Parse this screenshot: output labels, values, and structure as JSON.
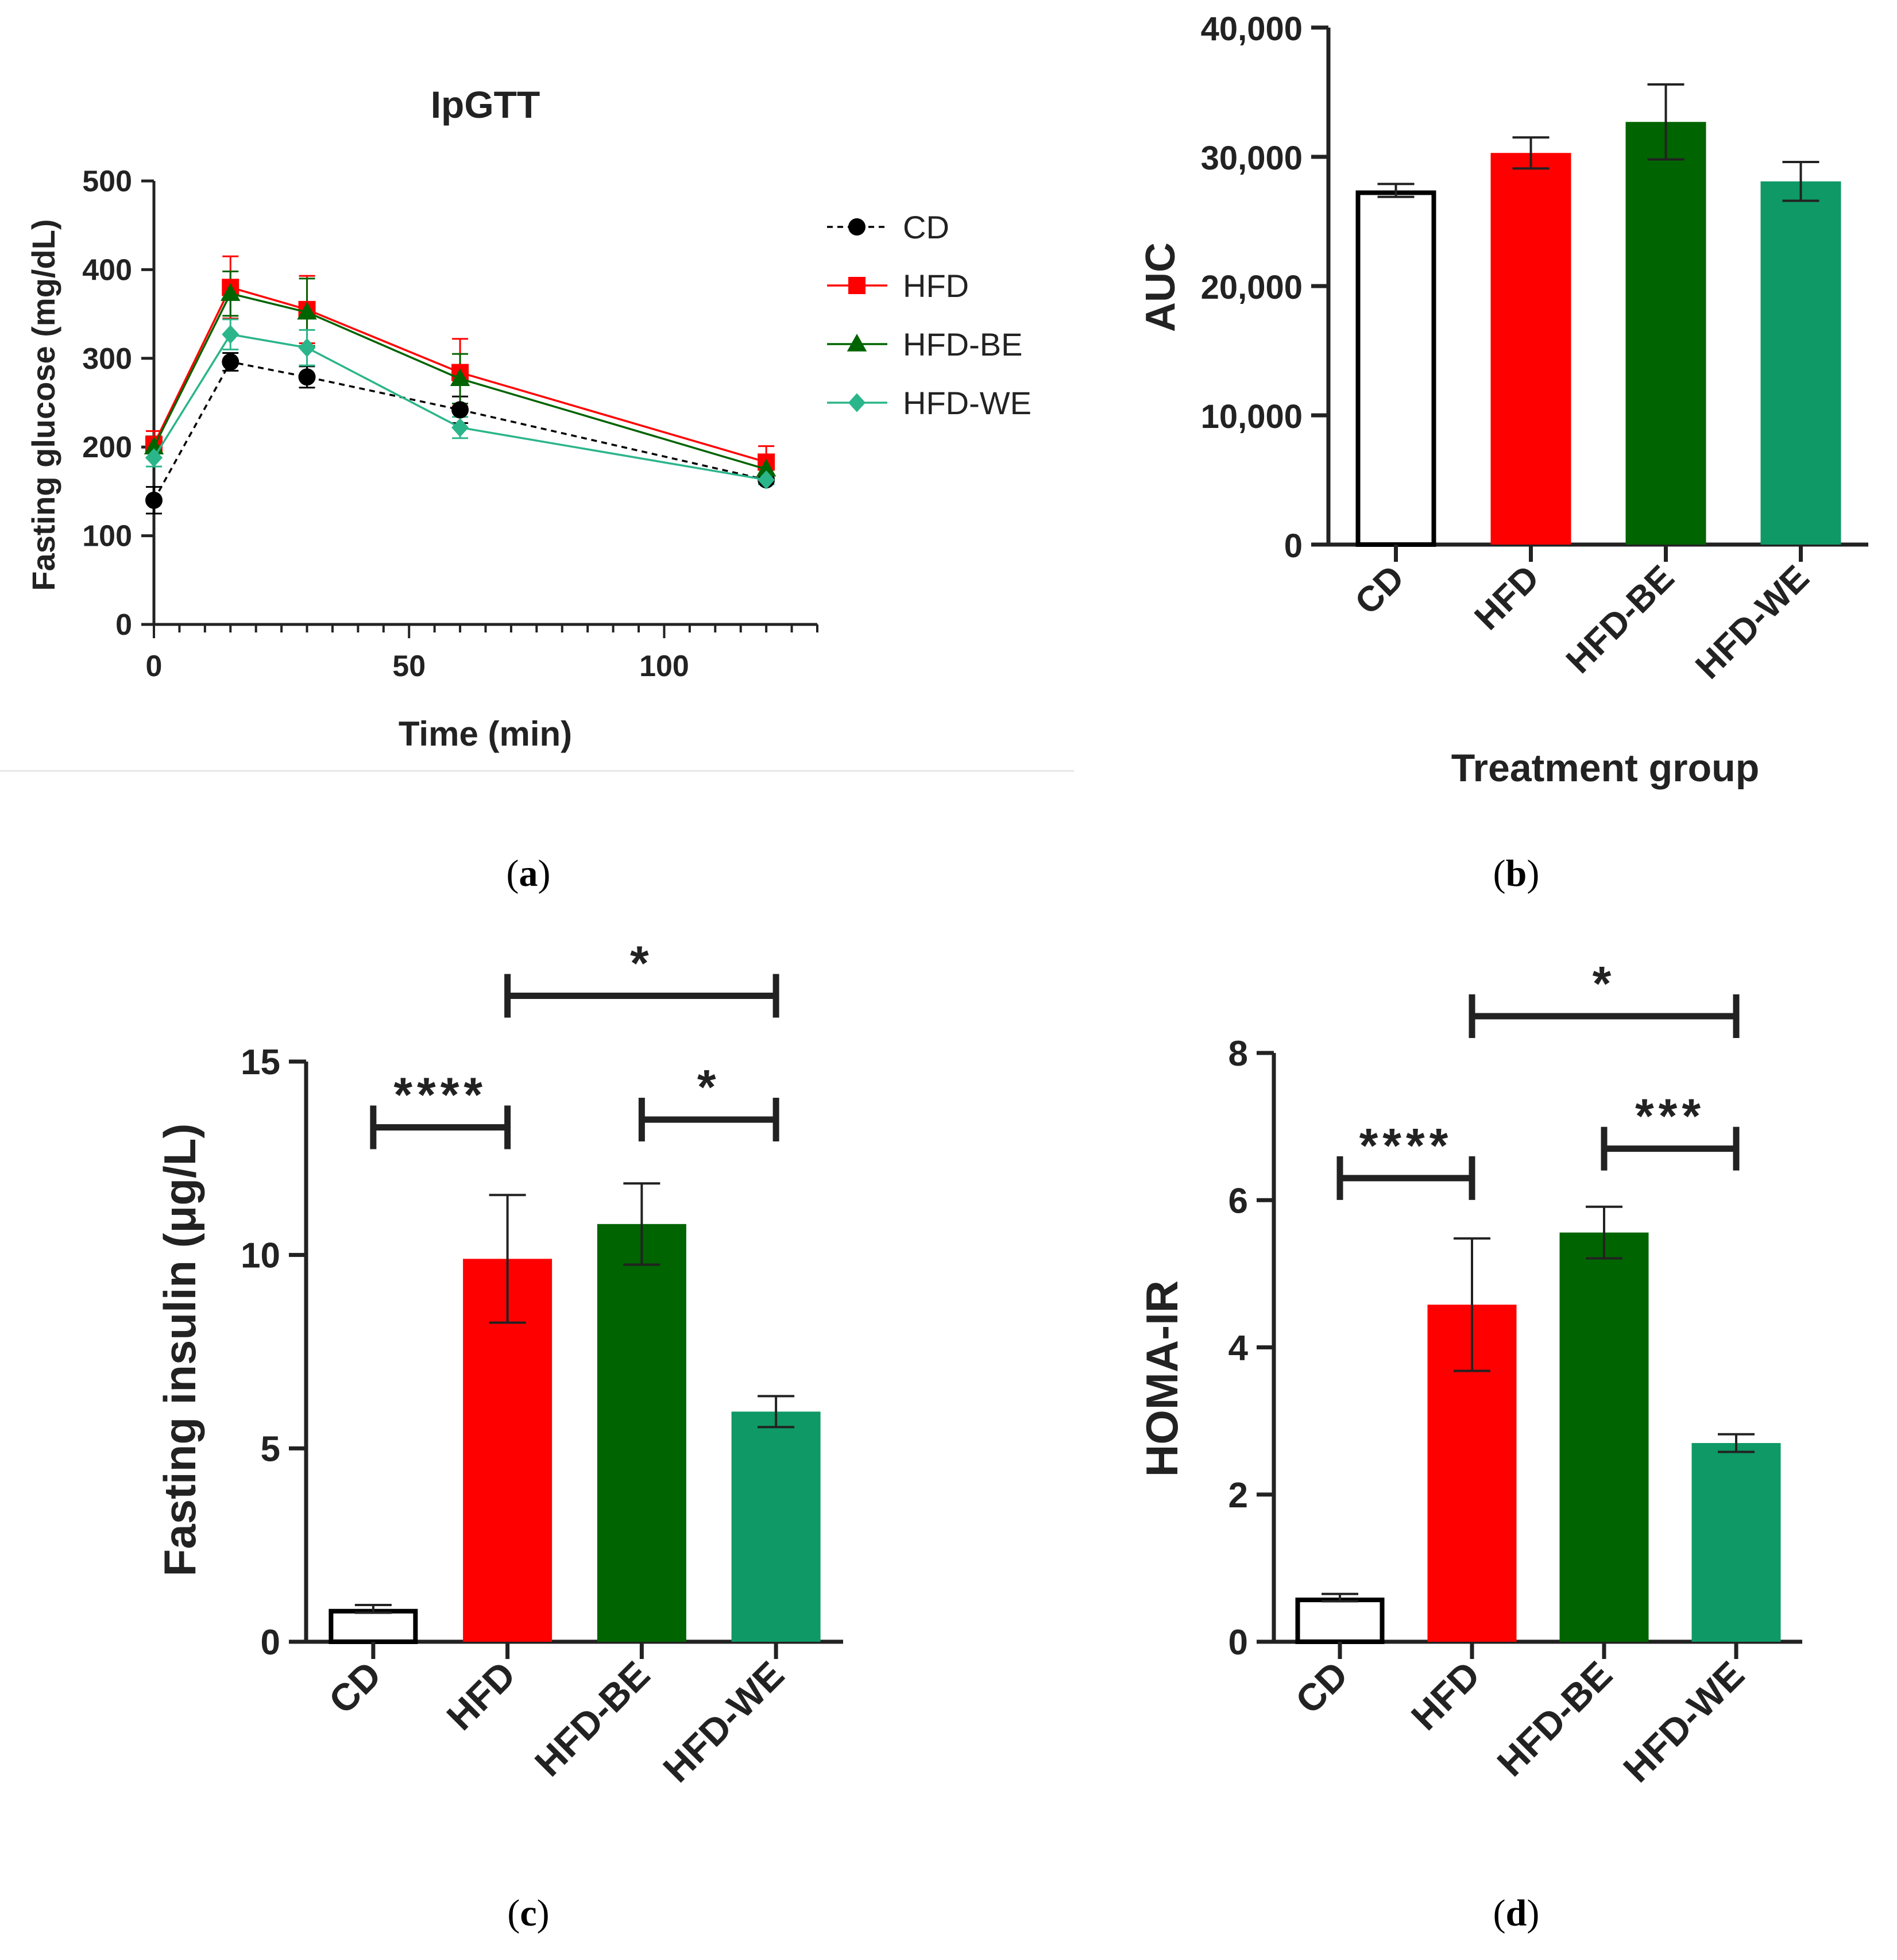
{
  "colors": {
    "axis": "#000000",
    "CD": "#000000",
    "HFD": "#ff0000",
    "HFD-BE": "#006400",
    "HFD-WE": "#0e9966",
    "HFD-WE-line": "#2bb58a",
    "divider": "#e6e6e6"
  },
  "panel_labels": [
    "a",
    "b",
    "c",
    "d"
  ],
  "chart_data": [
    {
      "panel": "a",
      "type": "line",
      "title": "IpGTT",
      "xlabel": "Time (min)",
      "ylabel": "Fasting glucose (mg/dL)",
      "xlim": [
        0,
        130
      ],
      "ylim": [
        0,
        500
      ],
      "xticks": [
        0,
        50,
        100
      ],
      "yticks": [
        0,
        100,
        200,
        300,
        400,
        500
      ],
      "x": [
        0,
        15,
        30,
        60,
        120
      ],
      "legend_position": "right",
      "series": [
        {
          "name": "CD",
          "marker": "circle",
          "dashed": true,
          "values": [
            140,
            296,
            279,
            242,
            163
          ],
          "errors": [
            15,
            10,
            12,
            15,
            5
          ]
        },
        {
          "name": "HFD",
          "marker": "square",
          "dashed": false,
          "values": [
            203,
            380,
            355,
            284,
            183
          ],
          "errors": [
            15,
            35,
            38,
            38,
            18
          ]
        },
        {
          "name": "HFD-BE",
          "marker": "triangle",
          "dashed": false,
          "values": [
            200,
            373,
            352,
            277,
            175
          ],
          "errors": [
            12,
            25,
            38,
            28,
            10
          ]
        },
        {
          "name": "HFD-WE",
          "marker": "diamond",
          "dashed": false,
          "values": [
            188,
            327,
            312,
            222,
            163
          ],
          "errors": [
            10,
            17,
            20,
            12,
            5
          ]
        }
      ]
    },
    {
      "panel": "b",
      "type": "bar",
      "xlabel": "Treatment group",
      "ylabel": "AUC",
      "ylim": [
        0,
        40000
      ],
      "yticks": [
        0,
        10000,
        20000,
        30000,
        40000
      ],
      "ytick_labels": [
        "0",
        "10,000",
        "20,000",
        "30,000",
        "40,000"
      ],
      "categories": [
        "CD",
        "HFD",
        "HFD-BE",
        "HFD-WE"
      ],
      "values": [
        27400,
        30300,
        32700,
        28100
      ],
      "errors": [
        500,
        1200,
        2900,
        1500
      ]
    },
    {
      "panel": "c",
      "type": "bar",
      "ylabel": "Fasting insulin (μg/L)",
      "ylim": [
        0,
        15
      ],
      "yticks": [
        0,
        5,
        10,
        15
      ],
      "ytick_labels": [
        "0",
        "5",
        "10",
        "15"
      ],
      "categories": [
        "CD",
        "HFD",
        "HFD-BE",
        "HFD-WE"
      ],
      "values": [
        0.85,
        9.9,
        10.8,
        5.95
      ],
      "errors": [
        0.1,
        1.65,
        1.05,
        0.4
      ],
      "significance": [
        {
          "from": 0,
          "to": 1,
          "label": "****",
          "level": 13.3
        },
        {
          "from": 2,
          "to": 3,
          "label": "*",
          "level": 13.5
        },
        {
          "from": 1,
          "to": 3,
          "label": "*",
          "level": 16.7
        }
      ]
    },
    {
      "panel": "d",
      "type": "bar",
      "ylabel": "HOMA-IR",
      "ylim": [
        0,
        8
      ],
      "yticks": [
        0,
        2,
        4,
        6,
        8
      ],
      "ytick_labels": [
        "0",
        "2",
        "4",
        "6",
        "8"
      ],
      "categories": [
        "CD",
        "HFD",
        "HFD-BE",
        "HFD-WE"
      ],
      "values": [
        0.6,
        4.58,
        5.56,
        2.7
      ],
      "errors": [
        0.05,
        0.9,
        0.35,
        0.12
      ],
      "significance": [
        {
          "from": 0,
          "to": 1,
          "label": "****",
          "level": 6.3
        },
        {
          "from": 2,
          "to": 3,
          "label": "***",
          "level": 6.7
        },
        {
          "from": 1,
          "to": 3,
          "label": "*",
          "level": 8.5
        }
      ]
    }
  ]
}
